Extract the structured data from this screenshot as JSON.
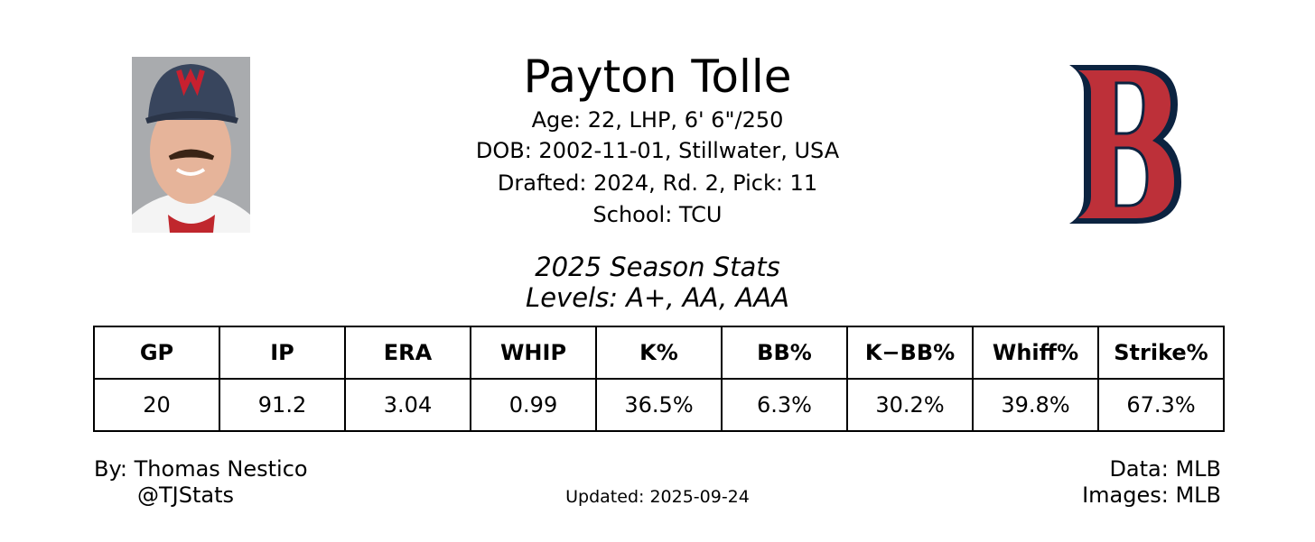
{
  "header": {
    "name": "Payton Tolle",
    "bio": [
      "Age: 22, LHP, 6' 6\"/250",
      "DOB: 2002-11-01, Stillwater, USA",
      "Drafted: 2024, Rd. 2, Pick: 11",
      "School: TCU"
    ]
  },
  "stats": {
    "title": "2025 Season Stats",
    "levels": "Levels: A+, AA, AAA"
  },
  "table": {
    "headers": [
      "GP",
      "IP",
      "ERA",
      "WHIP",
      "K%",
      "BB%",
      "K−BB%",
      "Whiff%",
      "Strike%"
    ],
    "rows": [
      [
        "20",
        "91.2",
        "3.04",
        "0.99",
        "36.5%",
        "6.3%",
        "30.2%",
        "39.8%",
        "67.3%"
      ]
    ]
  },
  "footer": {
    "author": "By: Thomas Nestico",
    "handle": "@TJStats",
    "updated": "Updated: 2025-09-24",
    "data_source": "Data: MLB",
    "image_source": "Images: MLB"
  }
}
